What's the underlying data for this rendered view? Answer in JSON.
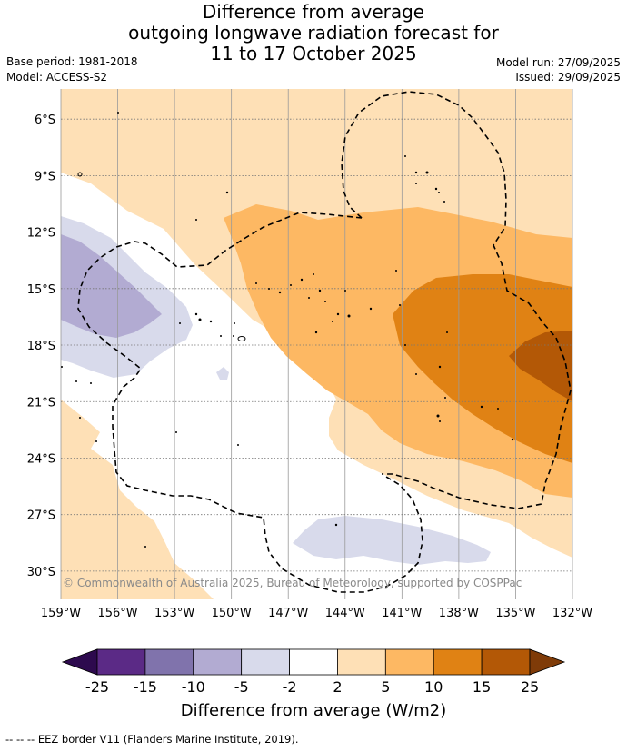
{
  "header": {
    "title_lines": [
      "Difference from average",
      "outgoing longwave radiation forecast for",
      "11 to 17 October 2025"
    ],
    "base_period": "Base period: 1981-2018",
    "model": "Model: ACCESS-S2",
    "model_run": "Model run: 27/09/2025",
    "issued": "Issued: 29/09/2025"
  },
  "chart_data": {
    "type": "map",
    "title": "Difference from average outgoing longwave radiation forecast for 11 to 17 October 2025",
    "x_ticks": [
      "159°W",
      "156°W",
      "153°W",
      "150°W",
      "147°W",
      "144°W",
      "141°W",
      "138°W",
      "135°W",
      "132°W"
    ],
    "y_ticks": [
      "6°S",
      "9°S",
      "12°S",
      "15°S",
      "18°S",
      "21°S",
      "24°S",
      "27°S",
      "30°S"
    ],
    "lon_range": [
      -159,
      -132
    ],
    "lat_range": [
      -4.4,
      -31.5
    ],
    "grid": true,
    "copyright": "© Commonwealth of Australia 2025, Bureau of Meteorology, supported by COSPPac",
    "colorbar": {
      "label": "Difference from average (W/m2)",
      "ticks": [
        "-25",
        "-15",
        "-10",
        "-5",
        "-2",
        "2",
        "5",
        "10",
        "15",
        "25"
      ],
      "bins": [
        {
          "range": "< -25",
          "color": "#2d0a4e"
        },
        {
          "range": "-25 to -15",
          "color": "#5b2a86"
        },
        {
          "range": "-15 to -10",
          "color": "#8073ac"
        },
        {
          "range": "-10 to -5",
          "color": "#b2abd2"
        },
        {
          "range": "-5 to -2",
          "color": "#d8daeb"
        },
        {
          "range": "-2 to 2",
          "color": "#ffffff"
        },
        {
          "range": "2 to 5",
          "color": "#fee0b6"
        },
        {
          "range": "5 to 10",
          "color": "#fdb863"
        },
        {
          "range": "10 to 15",
          "color": "#e08214"
        },
        {
          "range": "15 to 25",
          "color": "#b35806"
        },
        {
          "range": "> 25",
          "color": "#7f3b08"
        }
      ]
    }
  },
  "footer": {
    "legend_line": "--  --  -- EEZ border V11 (Flanders Marine Institute, 2019)."
  }
}
